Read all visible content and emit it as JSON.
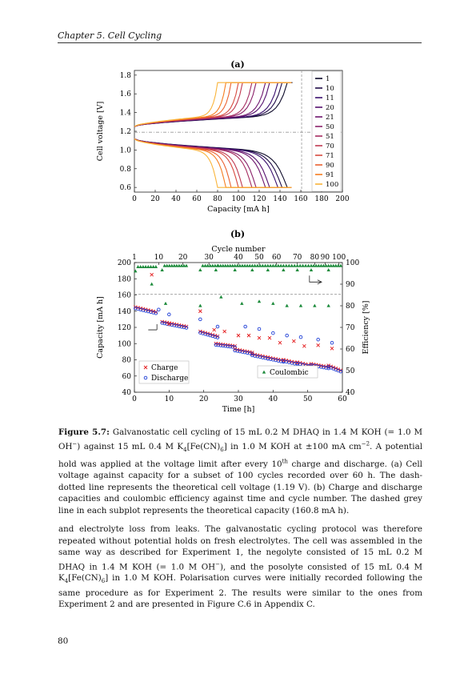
{
  "header": {
    "text": "Chapter 5.  Cell Cycling"
  },
  "page_number": "80",
  "figure": {
    "panel_a_label": "(a)",
    "panel_b_label": "(b)",
    "caption_label": "Figure 5.7:",
    "caption_html": "Galvanostatic cell cycling of 15 mL 0.2 M DHAQ in 1.4 M KOH (= 1.0 M OH<sup>−</sup>) against 15 mL 0.4 M K<sub>4</sub>[Fe(CN)<sub>6</sub>] in 1.0 M KOH at ±100 mA cm<sup>−2</sup>. A potential hold was applied at the voltage limit after every 10<sup>th</sup> charge and discharge. (a) Cell voltage against capacity for a subset of 100 cycles recorded over 60 h. The dash-dotted line represents the theoretical cell voltage (1.19 V). (b) Charge and discharge capacities and coulombic efficiency against time and cycle number. The dashed grey line in each subplot represents the theoretical capacity (160.8 mA h)."
  },
  "body_html": "and electrolyte loss from leaks. The galvanostatic cycling protocol was therefore repeated without potential holds on fresh electrolytes. The cell was assembled in the same way as described for Experiment 1, the negolyte consisted of 15 mL 0.2 M DHAQ in 1.4 M KOH (= 1.0 M OH<sup>−</sup>), and the posolyte consisted of 15 mL 0.4 M K<sub>4</sub>[Fe(CN)<sub>6</sub>] in 1.0 M KOH. Polarisation curves were initially recorded following the same procedure as for Experiment 2. The results were similar to the ones from Experiment 2 and are presented in Figure C.6 in Appendix C.",
  "chart_data": [
    {
      "type": "line",
      "panel": "(a)",
      "xlabel": "Capacity [mA h]",
      "ylabel": "Cell voltage [V]",
      "xlim": [
        0,
        200
      ],
      "ylim": [
        0.55,
        1.85
      ],
      "xticks": [
        0,
        20,
        40,
        60,
        80,
        100,
        120,
        140,
        160,
        180,
        200
      ],
      "yticks": [
        0.6,
        0.8,
        1.0,
        1.2,
        1.4,
        1.6,
        1.8
      ],
      "reference_lines": {
        "theoretical_voltage": 1.19,
        "theoretical_capacity": 160.8
      },
      "legend_position": "right",
      "series": [
        {
          "name": "1",
          "color": "#0d0a29",
          "capacity": 147
        },
        {
          "name": "10",
          "color": "#1f0c48",
          "capacity": 142
        },
        {
          "name": "11",
          "color": "#3a0f6e",
          "capacity": 138
        },
        {
          "name": "20",
          "color": "#55106e",
          "capacity": 130
        },
        {
          "name": "21",
          "color": "#6e166e",
          "capacity": 126
        },
        {
          "name": "50",
          "color": "#8a226a",
          "capacity": 117
        },
        {
          "name": "51",
          "color": "#a52c60",
          "capacity": 113
        },
        {
          "name": "70",
          "color": "#c03a50",
          "capacity": 104
        },
        {
          "name": "71",
          "color": "#d74a3f",
          "capacity": 100
        },
        {
          "name": "90",
          "color": "#ea6130",
          "capacity": 93
        },
        {
          "name": "91",
          "color": "#f57d20",
          "capacity": 88
        },
        {
          "name": "100",
          "color": "#f9b43a",
          "capacity": 80
        }
      ]
    },
    {
      "type": "scatter",
      "panel": "(b)",
      "xlabel": "Time [h]",
      "ylabel": "Capacity [mA h]",
      "y2label": "Efficiency [%]",
      "top_xlabel": "Cycle number",
      "xlim": [
        0,
        60
      ],
      "ylim": [
        40,
        200
      ],
      "y2lim": [
        40,
        100
      ],
      "xticks": [
        0,
        10,
        20,
        30,
        40,
        50,
        60
      ],
      "yticks": [
        40,
        60,
        80,
        100,
        120,
        140,
        160,
        180,
        200
      ],
      "y2ticks": [
        40,
        50,
        60,
        70,
        80,
        90,
        100
      ],
      "top_ticks": [
        "1",
        "10",
        "20",
        "30",
        "40",
        "50",
        "60",
        "70",
        "80",
        "90",
        "100"
      ],
      "top_tick_times": [
        0,
        7,
        14,
        21.5,
        30,
        36,
        41,
        47,
        52,
        55,
        59
      ],
      "theoretical_capacity": 160.8,
      "legend_left": [
        "Charge",
        "Discharge"
      ],
      "legend_right": [
        "Coulombic"
      ],
      "segments": [
        {
          "t0": 0.3,
          "t1": 6.2,
          "cap0": 144,
          "cap1": 138,
          "ce": 98
        },
        {
          "t0": 8,
          "t1": 15,
          "cap0": 126,
          "cap1": 120,
          "ce": 98.5
        },
        {
          "t0": 19,
          "t1": 24,
          "cap0": 114,
          "cap1": 108,
          "ce": 98.5
        },
        {
          "t0": 23.5,
          "t1": 29,
          "cap0": 99,
          "cap1": 96,
          "ce": 98.5
        },
        {
          "t0": 29,
          "t1": 34,
          "cap0": 92,
          "cap1": 88,
          "ce": 98.5
        },
        {
          "t0": 34,
          "t1": 38.5,
          "cap0": 86,
          "cap1": 82,
          "ce": 98.5
        },
        {
          "t0": 38.5,
          "t1": 43,
          "cap0": 82,
          "cap1": 78,
          "ce": 98.5
        },
        {
          "t0": 43,
          "t1": 47,
          "cap0": 79,
          "cap1": 75,
          "ce": 98.5
        },
        {
          "t0": 47,
          "t1": 51,
          "cap0": 76,
          "cap1": 72,
          "ce": 98.5
        },
        {
          "t0": 51,
          "t1": 56,
          "cap0": 74,
          "cap1": 70,
          "ce": 98.5
        },
        {
          "t0": 56,
          "t1": 59.5,
          "cap0": 72,
          "cap1": 66,
          "ce": 98.5
        }
      ],
      "charge_outliers": [
        [
          5,
          185
        ],
        [
          10,
          124
        ],
        [
          19,
          140
        ],
        [
          23,
          117
        ],
        [
          26,
          115
        ],
        [
          30,
          110
        ],
        [
          33,
          110
        ],
        [
          36,
          107
        ],
        [
          39,
          107
        ],
        [
          42,
          101
        ],
        [
          46,
          103
        ],
        [
          49,
          97
        ],
        [
          53,
          98
        ],
        [
          57,
          94
        ]
      ],
      "discharge_outliers": [
        [
          7,
          142
        ],
        [
          10,
          136
        ],
        [
          19,
          130
        ],
        [
          24,
          121
        ],
        [
          32,
          121
        ],
        [
          36,
          118
        ],
        [
          40,
          113
        ],
        [
          44,
          110
        ],
        [
          48,
          108
        ],
        [
          53,
          105
        ],
        [
          57,
          101
        ]
      ],
      "ce_outliers": [
        [
          5,
          90
        ],
        [
          9,
          81
        ],
        [
          19,
          80
        ],
        [
          25,
          84
        ],
        [
          31,
          81
        ],
        [
          36,
          82
        ],
        [
          40,
          81
        ],
        [
          44,
          80
        ],
        [
          48,
          80
        ],
        [
          52,
          80
        ],
        [
          56,
          80
        ]
      ]
    }
  ]
}
